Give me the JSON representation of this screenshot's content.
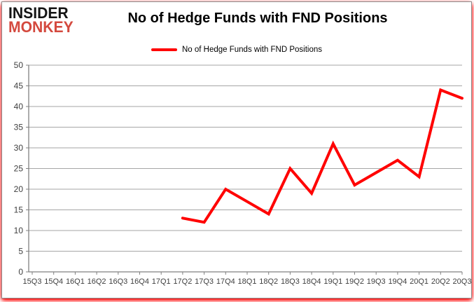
{
  "logo": {
    "line1": "INSIDER",
    "line2": "MONKEY"
  },
  "header": {
    "title": "No of Hedge Funds with FND Positions"
  },
  "legend": {
    "label": "No of Hedge Funds with FND Positions",
    "line_color": "#ff0000"
  },
  "colors": {
    "series_line": "#ff0000",
    "gridline": "#a6a6a6",
    "axis": "#808080",
    "tick_text": "#3f3f3f",
    "logo_red": "#d4493e",
    "border_glow": "#ff0000"
  },
  "chart_data": {
    "type": "line",
    "title": "No of Hedge Funds with FND Positions",
    "categories": [
      "15Q3",
      "15Q4",
      "16Q1",
      "16Q2",
      "16Q3",
      "16Q4",
      "17Q1",
      "17Q2",
      "17Q3",
      "17Q4",
      "18Q1",
      "18Q2",
      "18Q3",
      "18Q4",
      "19Q1",
      "19Q2",
      "19Q3",
      "19Q4",
      "20Q1",
      "20Q2",
      "20Q3"
    ],
    "series": [
      {
        "name": "No of Hedge Funds with FND Positions",
        "color": "#ff0000",
        "values": [
          null,
          null,
          null,
          null,
          null,
          null,
          null,
          13,
          12,
          20,
          17,
          14,
          25,
          19,
          31,
          21,
          24,
          27,
          23,
          44,
          42
        ]
      }
    ],
    "xlabel": "",
    "ylabel": "",
    "ylim": [
      0,
      50
    ],
    "yticks": [
      0,
      5,
      10,
      15,
      20,
      25,
      30,
      35,
      40,
      45,
      50
    ],
    "grid": "horizontal",
    "legend_position": "top-center"
  }
}
